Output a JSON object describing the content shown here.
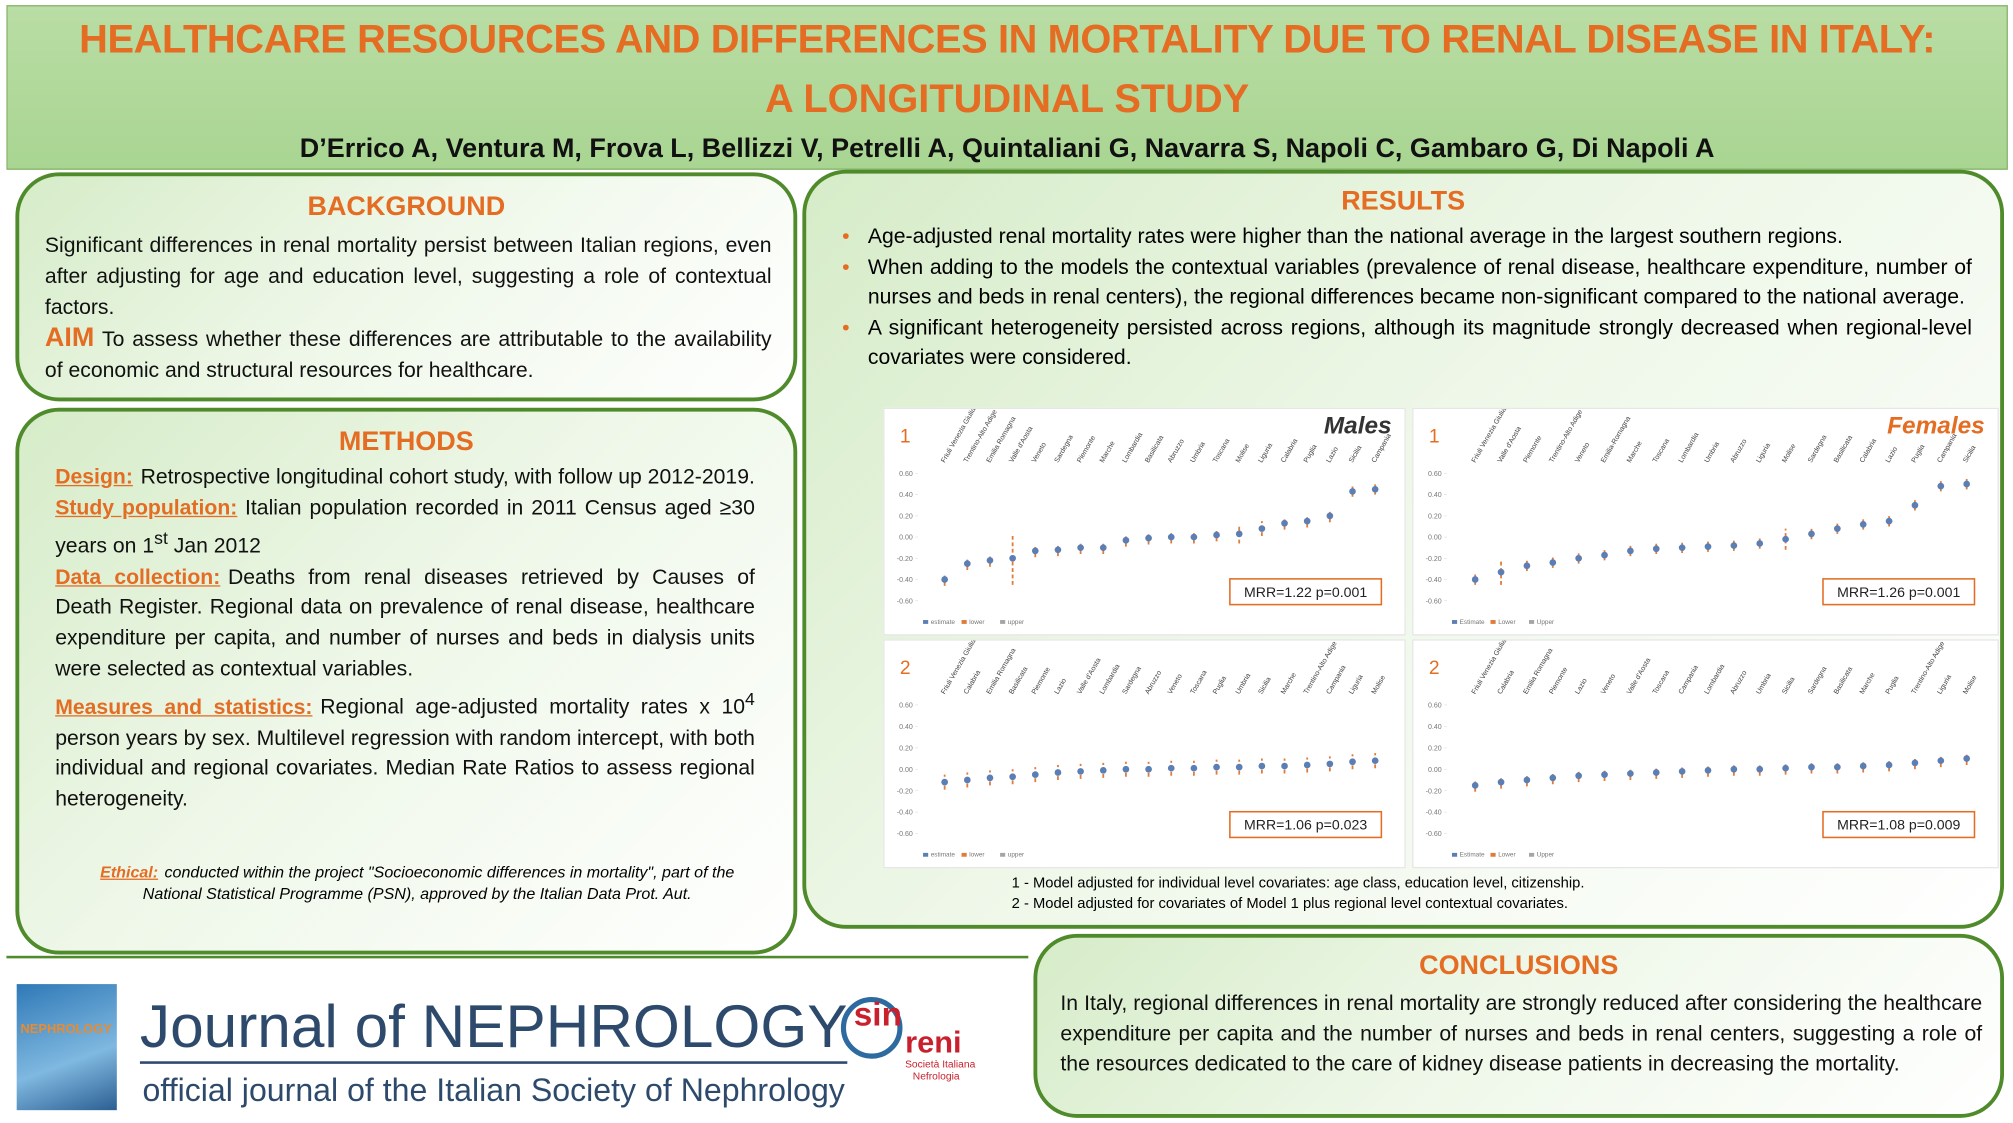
{
  "header": {
    "title_line1": "HEALTHCARE RESOURCES AND DIFFERENCES IN MORTALITY DUE TO RENAL DISEASE IN ITALY:",
    "title_line2": "A LONGITUDINAL STUDY",
    "authors": "D’Errico A, Ventura M, Frova L, Bellizzi V, Petrelli A, Quintaliani G, Navarra S, Napoli C, Gambaro G, Di Napoli A"
  },
  "background": {
    "heading": "BACKGROUND",
    "text": "Significant differences in renal mortality persist between Italian regions, even after adjusting for age and education level, suggesting a role of contextual factors.",
    "aim_label": "AIM",
    "aim_text": "To assess whether these differences are attributable to the availability of economic and structural resources for healthcare."
  },
  "methods": {
    "heading": "METHODS",
    "items": [
      {
        "label": "Design:",
        "parts": [
          "Retrospective longitudinal cohort study, with follow up 2012-2019."
        ]
      },
      {
        "label": "Study population:",
        "parts": [
          "Italian population recorded in 2011 Census aged ≥30 years on 1",
          "st",
          " Jan 2012"
        ]
      },
      {
        "label": "Data collection:",
        "parts": [
          "Deaths from renal diseases retrieved by Causes of Death Register. Regional data on prevalence of renal disease, healthcare expenditure per capita, and number of nurses and beds in dialysis units were selected as contextual variables."
        ]
      },
      {
        "label": "Measures and statistics:",
        "parts": [
          "Regional age-adjusted mortality rates x 10",
          "4",
          " person years by sex. Multilevel regression with random intercept, with both individual and regional covariates. Median Rate Ratios to assess regional heterogeneity."
        ]
      }
    ],
    "ethical_label": "Ethical:",
    "ethical_text": "conducted within the project \"Socioeconomic differences in mortality\", part of the National Statistical Programme (PSN), approved by the Italian Data Prot. Aut."
  },
  "results": {
    "heading": "RESULTS",
    "bullets": [
      "Age-adjusted renal mortality rates were higher than the national average in the largest southern regions.",
      "When adding to the models the contextual variables (prevalence of renal disease, healthcare expenditure, number of nurses and beds in renal centers), the regional differences became non-significant compared to the national average.",
      "A significant heterogeneity persisted across regions, although its magnitude strongly decreased when regional-level covariates were considered."
    ],
    "footnotes": [
      "1 - Model adjusted for individual level covariates: age class, education level, citizenship.",
      "2 - Model adjusted for covariates of Model 1 plus regional level contextual covariates."
    ]
  },
  "chart_data": [
    {
      "type": "errorbar",
      "panel": "1",
      "title": "Males",
      "annotation": "MRR=1.22 p=0.001",
      "categories": [
        "Friuli Venezia Giulia",
        "Trentino-Alto Adige",
        "Emilia Romagna",
        "Valle d'Aosta",
        "Veneto",
        "Sardegna",
        "Piemonte",
        "Marche",
        "Lombardia",
        "Basilicata",
        "Abruzzo",
        "Umbria",
        "Toscana",
        "Molise",
        "Liguria",
        "Calabria",
        "Puglia",
        "Lazio",
        "Sicilia",
        "Campania"
      ],
      "series": [
        {
          "name": "estimate",
          "color": "#5b7fb5",
          "values": [
            -0.4,
            -0.25,
            -0.22,
            -0.2,
            -0.13,
            -0.12,
            -0.1,
            -0.1,
            -0.03,
            -0.01,
            0.0,
            0.0,
            0.02,
            0.03,
            0.08,
            0.13,
            0.15,
            0.2,
            0.43,
            0.45
          ]
        },
        {
          "name": "lower",
          "color": "#e07b39",
          "values": [
            -0.46,
            -0.31,
            -0.28,
            -0.45,
            -0.19,
            -0.18,
            -0.16,
            -0.16,
            -0.09,
            -0.07,
            -0.06,
            -0.06,
            -0.04,
            -0.06,
            0.01,
            0.07,
            0.09,
            0.14,
            0.38,
            0.4
          ]
        },
        {
          "name": "upper",
          "color": "#a5a5a5",
          "values": [
            -0.34,
            -0.19,
            -0.16,
            0.03,
            -0.07,
            -0.06,
            -0.04,
            -0.04,
            0.03,
            0.05,
            0.06,
            0.06,
            0.08,
            0.12,
            0.15,
            0.19,
            0.21,
            0.26,
            0.48,
            0.5
          ]
        }
      ],
      "ylim": [
        -0.6,
        0.6
      ],
      "yticks": [
        {
          "value": 0.6,
          "label": "0.60"
        },
        {
          "value": 0.4,
          "label": "0.40"
        },
        {
          "value": 0.2,
          "label": "0.20"
        },
        {
          "value": 0,
          "label": "0.00"
        },
        {
          "value": -0.2,
          "label": "-0.20"
        },
        {
          "value": -0.4,
          "label": "-0.40"
        },
        {
          "value": -0.6,
          "label": "-0.60"
        }
      ],
      "title_color": "#333333"
    },
    {
      "type": "errorbar",
      "panel": "1",
      "title": "Females",
      "annotation": "MRR=1.26 p=0.001",
      "categories": [
        "Friuli Venezia Giulia",
        "Valle d'Aosta",
        "Piemonte",
        "Trentino-Alto Adige",
        "Veneto",
        "Emilia-Romagna",
        "Marche",
        "Toscana",
        "Lombardia",
        "Umbria",
        "Abruzzo",
        "Liguria",
        "Molise",
        "Sardegna",
        "Basilicata",
        "Calabria",
        "Lazio",
        "Puglia",
        "Campania",
        "Sicilia"
      ],
      "series": [
        {
          "name": "Estimate",
          "color": "#5b7fb5",
          "values": [
            -0.4,
            -0.33,
            -0.27,
            -0.24,
            -0.2,
            -0.17,
            -0.13,
            -0.11,
            -0.1,
            -0.09,
            -0.08,
            -0.06,
            -0.02,
            0.03,
            0.08,
            0.12,
            0.15,
            0.3,
            0.48,
            0.5
          ]
        },
        {
          "name": "Lower",
          "color": "#e07b39",
          "values": [
            -0.45,
            -0.45,
            -0.32,
            -0.29,
            -0.25,
            -0.22,
            -0.18,
            -0.16,
            -0.15,
            -0.14,
            -0.13,
            -0.11,
            -0.12,
            -0.02,
            0.03,
            0.07,
            0.1,
            0.25,
            0.43,
            0.45
          ]
        },
        {
          "name": "Upper",
          "color": "#a5a5a5",
          "values": [
            -0.35,
            -0.21,
            -0.22,
            -0.19,
            -0.15,
            -0.12,
            -0.08,
            -0.06,
            -0.05,
            -0.04,
            -0.03,
            -0.01,
            0.08,
            0.08,
            0.13,
            0.17,
            0.2,
            0.35,
            0.53,
            0.55
          ]
        }
      ],
      "ylim": [
        -0.6,
        0.6
      ],
      "yticks": [
        {
          "value": 0.6,
          "label": "0.60"
        },
        {
          "value": 0.4,
          "label": "0.40"
        },
        {
          "value": 0.2,
          "label": "0.20"
        },
        {
          "value": 0,
          "label": "0.00"
        },
        {
          "value": -0.2,
          "label": "-0.20"
        },
        {
          "value": -0.4,
          "label": "-0.40"
        },
        {
          "value": -0.6,
          "label": "-0.60"
        }
      ],
      "title_color": "#e46c23"
    },
    {
      "type": "errorbar",
      "panel": "2",
      "annotation": "MRR=1.06 p=0.023",
      "categories": [
        "Friuli Venezia Giulia",
        "Calabria",
        "Emilia Romagna",
        "Basilicata",
        "Piemonte",
        "Lazio",
        "Valle d'Aosta",
        "Lombardia",
        "Sardegna",
        "Abruzzo",
        "Veneto",
        "Toscana",
        "Puglia",
        "Umbria",
        "Sicilia",
        "Marche",
        "Trentino-Alto Adige",
        "Campania",
        "Liguria",
        "Molise"
      ],
      "series": [
        {
          "name": "estimate",
          "color": "#5b7fb5",
          "values": [
            -0.12,
            -0.1,
            -0.08,
            -0.07,
            -0.05,
            -0.03,
            -0.02,
            -0.01,
            0.0,
            0.0,
            0.01,
            0.01,
            0.02,
            0.02,
            0.03,
            0.03,
            0.04,
            0.05,
            0.07,
            0.08
          ]
        },
        {
          "name": "lower",
          "color": "#e07b39",
          "values": [
            -0.19,
            -0.17,
            -0.15,
            -0.14,
            -0.12,
            -0.1,
            -0.09,
            -0.08,
            -0.07,
            -0.07,
            -0.06,
            -0.06,
            -0.05,
            -0.05,
            -0.04,
            -0.04,
            -0.03,
            -0.02,
            0.0,
            0.01
          ]
        },
        {
          "name": "upper",
          "color": "#a5a5a5",
          "values": [
            -0.05,
            -0.03,
            -0.01,
            0.0,
            0.02,
            0.04,
            0.05,
            0.06,
            0.07,
            0.07,
            0.08,
            0.08,
            0.09,
            0.09,
            0.1,
            0.1,
            0.11,
            0.12,
            0.14,
            0.15
          ]
        }
      ],
      "ylim": [
        -0.6,
        0.6
      ],
      "yticks": [
        {
          "value": 0.6,
          "label": "0.60"
        },
        {
          "value": 0.4,
          "label": "0.40"
        },
        {
          "value": 0.2,
          "label": "0.20"
        },
        {
          "value": 0,
          "label": "0.00"
        },
        {
          "value": -0.2,
          "label": "-0.20"
        },
        {
          "value": -0.4,
          "label": "-0.40"
        },
        {
          "value": -0.6,
          "label": "-0.60"
        }
      ]
    },
    {
      "type": "errorbar",
      "panel": "2",
      "annotation": "MRR=1.08 p=0.009",
      "categories": [
        "Friuli Venezia Giulia",
        "Calabria",
        "Emilia Romagna",
        "Piemonte",
        "Lazio",
        "Veneto",
        "Valle d'Aosta",
        "Toscana",
        "Campania",
        "Lombardia",
        "Abruzzo",
        "Umbria",
        "Sicilia",
        "Sardegna",
        "Basilicata",
        "Marche",
        "Puglia",
        "Trentino-Alto Adige",
        "Liguria",
        "Molise"
      ],
      "series": [
        {
          "name": "Estimate",
          "color": "#5b7fb5",
          "values": [
            -0.15,
            -0.12,
            -0.1,
            -0.08,
            -0.06,
            -0.05,
            -0.04,
            -0.03,
            -0.02,
            -0.01,
            0.0,
            0.0,
            0.01,
            0.02,
            0.02,
            0.03,
            0.04,
            0.06,
            0.08,
            0.1
          ]
        },
        {
          "name": "Lower",
          "color": "#e07b39",
          "values": [
            -0.21,
            -0.18,
            -0.16,
            -0.14,
            -0.12,
            -0.11,
            -0.1,
            -0.09,
            -0.08,
            -0.07,
            -0.06,
            -0.06,
            -0.05,
            -0.04,
            -0.04,
            -0.03,
            -0.02,
            0.0,
            0.02,
            0.04
          ]
        },
        {
          "name": "Upper",
          "color": "#a5a5a5",
          "values": [
            -0.09,
            -0.06,
            -0.04,
            -0.02,
            0.0,
            0.01,
            0.02,
            0.03,
            0.04,
            0.05,
            0.06,
            0.06,
            0.07,
            0.08,
            0.08,
            0.09,
            0.1,
            0.12,
            0.14,
            0.16
          ]
        }
      ],
      "ylim": [
        -0.6,
        0.6
      ],
      "yticks": [
        {
          "value": 0.6,
          "label": "0.60"
        },
        {
          "value": 0.4,
          "label": "0.40"
        },
        {
          "value": 0.2,
          "label": "0.20"
        },
        {
          "value": 0,
          "label": "0.00"
        },
        {
          "value": -0.2,
          "label": "-0.20"
        },
        {
          "value": -0.4,
          "label": "-0.40"
        },
        {
          "value": -0.6,
          "label": "-0.60"
        }
      ]
    }
  ],
  "conclusions": {
    "heading": "CONCLUSIONS",
    "text": "In Italy, regional differences in renal mortality are strongly reduced after considering the healthcare expenditure per capita and the number of nurses and beds in renal centers, suggesting a role of the resources dedicated to the care of kidney disease patients in decreasing the mortality."
  },
  "journal": {
    "cover_title": "NEPHROLOGY",
    "name": "Journal of NEPHROLOGY",
    "subtitle": "official journal of the Italian Society of Nephrology",
    "logo_sin": "sin",
    "logo_reni": "reni",
    "logo_society": "Società Italiana",
    "logo_nefrologia": "Nefrologia"
  }
}
